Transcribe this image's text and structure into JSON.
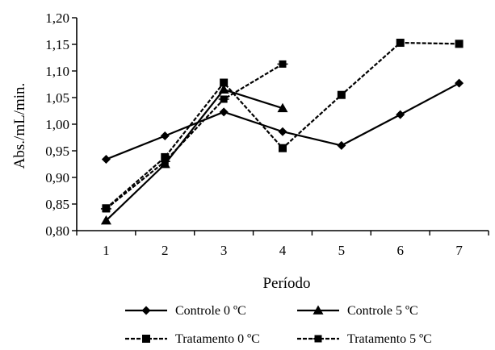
{
  "chart_data": {
    "type": "line",
    "title": "",
    "xlabel": "Período",
    "ylabel": "Abs./mL/min.",
    "categories": [
      "1",
      "2",
      "3",
      "4",
      "5",
      "6",
      "7"
    ],
    "x": [
      1,
      2,
      3,
      4,
      5,
      6,
      7
    ],
    "ylim": [
      0.8,
      1.2
    ],
    "yticks": [
      "0,80",
      "0,85",
      "0,90",
      "0,95",
      "1,00",
      "1,05",
      "1,10",
      "1,15",
      "1,20"
    ],
    "ytick_values": [
      0.8,
      0.85,
      0.9,
      0.95,
      1.0,
      1.05,
      1.1,
      1.15,
      1.2
    ],
    "grid": false,
    "legend_position": "bottom",
    "series": [
      {
        "name": "Controle 0 ºC",
        "marker": "diamond",
        "line_style": "solid",
        "x": [
          1,
          2,
          3,
          4,
          5,
          6,
          7
        ],
        "values": [
          0.934,
          0.978,
          1.023,
          0.986,
          0.96,
          1.018,
          1.077
        ]
      },
      {
        "name": "Controle 5 ºC",
        "marker": "triangle",
        "line_style": "solid",
        "x": [
          1,
          2,
          3,
          4
        ],
        "values": [
          0.819,
          0.925,
          1.065,
          1.03
        ]
      },
      {
        "name": "Tratamento 0 ºC",
        "marker": "square",
        "line_style": "dashed",
        "x": [
          1,
          2,
          3,
          4,
          5,
          6,
          7
        ],
        "values": [
          0.842,
          0.938,
          1.078,
          0.955,
          1.055,
          1.153,
          1.151
        ]
      },
      {
        "name": "Tratamento 5 ºC",
        "marker": "cross-square",
        "line_style": "dashed",
        "x": [
          1,
          2,
          3,
          4
        ],
        "values": [
          0.841,
          0.93,
          1.047,
          1.113
        ]
      }
    ]
  }
}
